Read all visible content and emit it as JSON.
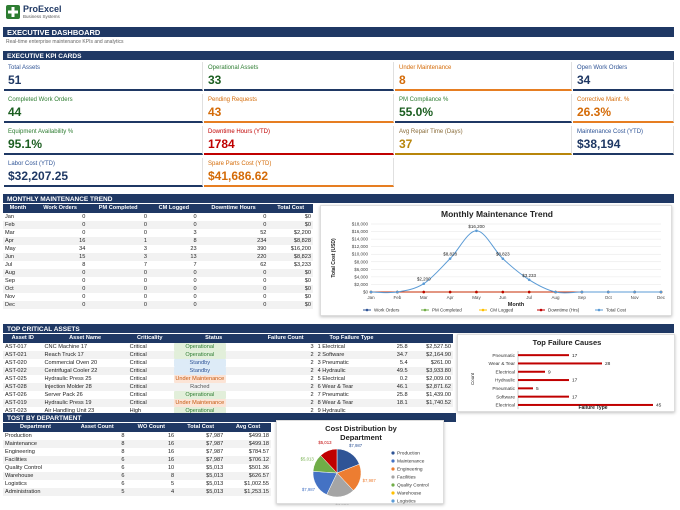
{
  "app": {
    "name": "ProExcel",
    "tagline": "Business Systems"
  },
  "dashboard": {
    "title": "EXECUTIVE DASHBOARD",
    "subtitle": "Real-time enterprise maintenance KPIs and analytics"
  },
  "kpi_section": "EXECUTIVE KPI CARDS",
  "kpis": [
    {
      "label": "Total Assets",
      "value": "51"
    },
    {
      "label": "Operational Assets",
      "value": "33"
    },
    {
      "label": "Under Maintenance",
      "value": "8"
    },
    {
      "label": "Open Work Orders",
      "value": "34"
    },
    {
      "label": "Completed Work Orders",
      "value": "44"
    },
    {
      "label": "Pending Requests",
      "value": "43"
    },
    {
      "label": "PM Compliance %",
      "value": "55.0%"
    },
    {
      "label": "Corrective Maint. %",
      "value": "26.3%"
    },
    {
      "label": "Equipment Availability %",
      "value": "95.1%"
    },
    {
      "label": "Downtime Hours (YTD)",
      "value": "1784"
    },
    {
      "label": "Avg Repair Time (Days)",
      "value": "37"
    },
    {
      "label": "Maintenance Cost (YTD)",
      "value": "$38,194"
    },
    {
      "label": "Labor Cost (YTD)",
      "value": "$32,207.25"
    },
    {
      "label": "Spare Parts Cost (YTD)",
      "value": "$41,686.62"
    }
  ],
  "trend": {
    "section": "MONTHLY MAINTENANCE TREND",
    "headers": [
      "Month",
      "Work Orders",
      "PM Completed",
      "CM Logged",
      "Downtime Hours",
      "Total Cost"
    ],
    "rows": [
      [
        "Jan",
        "0",
        "0",
        "0",
        "0",
        "$0"
      ],
      [
        "Feb",
        "0",
        "0",
        "0",
        "0",
        "$0"
      ],
      [
        "Mar",
        "0",
        "0",
        "3",
        "52",
        "$2,200"
      ],
      [
        "Apr",
        "16",
        "1",
        "8",
        "234",
        "$8,828"
      ],
      [
        "May",
        "34",
        "3",
        "23",
        "390",
        "$16,200"
      ],
      [
        "Jun",
        "15",
        "3",
        "13",
        "220",
        "$8,823"
      ],
      [
        "Jul",
        "8",
        "7",
        "7",
        "62",
        "$3,233"
      ],
      [
        "Aug",
        "0",
        "0",
        "0",
        "0",
        "$0"
      ],
      [
        "Sep",
        "0",
        "0",
        "0",
        "0",
        "$0"
      ],
      [
        "Oct",
        "0",
        "0",
        "0",
        "0",
        "$0"
      ],
      [
        "Nov",
        "0",
        "0",
        "0",
        "0",
        "$0"
      ],
      [
        "Dec",
        "0",
        "0",
        "0",
        "0",
        "$0"
      ]
    ]
  },
  "critical": {
    "section": "TOP CRITICAL ASSETS",
    "headers": [
      "Asset ID",
      "Asset Name",
      "Criticality",
      "Status",
      "Failure Count",
      "Top Failure Type",
      "",
      ""
    ],
    "rows": [
      [
        "AST-017",
        "CNC Machine 17",
        "Critical",
        "Operational",
        "3",
        "1 Electrical",
        "25.8",
        "$2,527.50"
      ],
      [
        "AST-021",
        "Reach Truck 17",
        "Critical",
        "Operational",
        "2",
        "2 Software",
        "34.7",
        "$2,164.90"
      ],
      [
        "AST-020",
        "Commercial Oven 20",
        "Critical",
        "Standby",
        "2",
        "3 Pneumatic",
        "5.4",
        "$261.00"
      ],
      [
        "AST-022",
        "Centrifugal Cooler 22",
        "Critical",
        "Standby",
        "2",
        "4 Hydraulic",
        "49.5",
        "$3,933.80"
      ],
      [
        "AST-025",
        "Hydraulic Press 25",
        "Critical",
        "Under Maintenance",
        "2",
        "5 Electrical",
        "0.2",
        "$2,009.00"
      ],
      [
        "AST-028",
        "Injection Molder 28",
        "Critical",
        "Rached",
        "2",
        "6 Wear & Tear",
        "46.1",
        "$2,871.62"
      ],
      [
        "AST-026",
        "Server Pack 26",
        "Critical",
        "Operational",
        "2",
        "7 Pneumatic",
        "25.8",
        "$1,439.00"
      ],
      [
        "AST-019",
        "Hydraulic Press 19",
        "Critical",
        "Under Maintenance",
        "2",
        "8 Wear & Tear",
        "18.1",
        "$1,740.52"
      ],
      [
        "AST-023",
        "Air Handling Unit 23",
        "High",
        "Operational",
        "2",
        "9 Hydraulic",
        "",
        ""
      ]
    ]
  },
  "departments": {
    "section": "TOST BY DEPARTMENT",
    "headers": [
      "Department",
      "Asset Count",
      "WO Count",
      "Total Cost",
      "Avg Cost"
    ],
    "rows": [
      [
        "Production",
        "8",
        "16",
        "$7,987",
        "$499.18"
      ],
      [
        "Maintenance",
        "8",
        "16",
        "$7,987",
        "$499.18"
      ],
      [
        "Engineering",
        "8",
        "16",
        "$7,987",
        "$784.57"
      ],
      [
        "Facilities",
        "6",
        "16",
        "$7,987",
        "$706.12"
      ],
      [
        "Quality Control",
        "6",
        "10",
        "$5,013",
        "$501.36"
      ],
      [
        "Warehouse",
        "6",
        "8",
        "$5,013",
        "$626.57"
      ],
      [
        "Logistics",
        "6",
        "5",
        "$5,013",
        "$1,002.55"
      ],
      [
        "Administration",
        "5",
        "4",
        "$5,013",
        "$1,253.15"
      ]
    ]
  },
  "chart_data": [
    {
      "type": "line",
      "title": "Monthly Maintenance Trend",
      "xlabel": "Month",
      "ylabel": "Total Cost (USD)",
      "x": [
        "Jan",
        "Feb",
        "Mar",
        "Apr",
        "May",
        "Jun",
        "Jul",
        "Aug",
        "Sep",
        "Oct",
        "Nov",
        "Dec"
      ],
      "ylim": [
        0,
        18000
      ],
      "yticks": [
        "$0",
        "$2,000",
        "$4,000",
        "$6,000",
        "$8,000",
        "$10,000",
        "$12,000",
        "$14,000",
        "$16,000",
        "$18,000"
      ],
      "legend": "bottom",
      "series": [
        {
          "name": "Work Orders",
          "color": "#2f5496",
          "values": [
            0,
            0,
            0,
            16,
            34,
            15,
            8,
            0,
            0,
            0,
            0,
            0
          ]
        },
        {
          "name": "PM Completed",
          "color": "#70ad47",
          "values": [
            0,
            0,
            0,
            1,
            3,
            3,
            7,
            0,
            0,
            0,
            0,
            0
          ]
        },
        {
          "name": "CM Logged",
          "color": "#ffc000",
          "values": [
            0,
            0,
            3,
            8,
            23,
            13,
            7,
            0,
            0,
            0,
            0,
            0
          ]
        },
        {
          "name": "Downtime (Hrs)",
          "color": "#c00000",
          "values": [
            0,
            0,
            52,
            234,
            390,
            220,
            62,
            0,
            0,
            0,
            0,
            0
          ]
        },
        {
          "name": "Total Cost",
          "color": "#5b9bd5",
          "values": [
            0,
            0,
            2200,
            8828,
            16200,
            8823,
            3233,
            0,
            0,
            0,
            0,
            0
          ]
        }
      ],
      "data_labels": [
        "$2,200",
        "$8,828",
        "$16,200",
        "$8,823",
        "$3,233"
      ]
    },
    {
      "type": "bar",
      "title": "Top Failure Causes",
      "xlabel": "Failure Type",
      "ylabel": "Count",
      "categories": [
        "Pneumatic",
        "Wear & Tear",
        "Electrical",
        "Hydraulic",
        "Pneumatic",
        "Software",
        "Electrical"
      ],
      "values": [
        17,
        28,
        9,
        17,
        5,
        17,
        45
      ],
      "color": "#c00000",
      "xlim": [
        0,
        50
      ]
    },
    {
      "type": "pie",
      "title": "Cost Distribution by Department",
      "categories": [
        "Production",
        "Maintenance",
        "Engineering",
        "Facilities",
        "Quality Control",
        "Warehouse"
      ],
      "values": [
        7987,
        7987,
        7987,
        7987,
        5013,
        5013
      ],
      "labels": [
        "$7,987",
        "$7,987",
        "$7,987",
        "$7,987",
        "$5,013",
        "$5,013"
      ],
      "colors": [
        "#2f5496",
        "#ed7d31",
        "#a5a5a5",
        "#4472c4",
        "#70ad47",
        "#c00000"
      ],
      "legend": "right"
    }
  ]
}
